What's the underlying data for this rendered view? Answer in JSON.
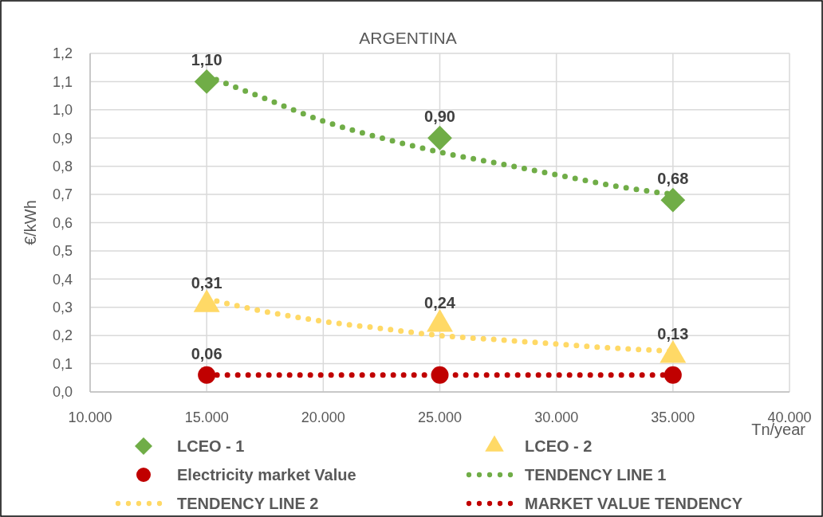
{
  "chart_data": {
    "type": "scatter",
    "title": "ARGENTINA",
    "xlabel": "Tn/year",
    "ylabel": "€/kWh",
    "xlim": [
      10000,
      40000
    ],
    "ylim": [
      0,
      1.2
    ],
    "xticks": [
      {
        "value": 10000,
        "label": "10.000"
      },
      {
        "value": 15000,
        "label": "15.000"
      },
      {
        "value": 20000,
        "label": "20.000"
      },
      {
        "value": 25000,
        "label": "25.000"
      },
      {
        "value": 30000,
        "label": "30.000"
      },
      {
        "value": 35000,
        "label": "35.000"
      },
      {
        "value": 40000,
        "label": "40.000"
      }
    ],
    "yticks": [
      {
        "value": 0,
        "label": "0,0"
      },
      {
        "value": 0.1,
        "label": "0,1"
      },
      {
        "value": 0.2,
        "label": "0,2"
      },
      {
        "value": 0.3,
        "label": "0,3"
      },
      {
        "value": 0.4,
        "label": "0,4"
      },
      {
        "value": 0.5,
        "label": "0,5"
      },
      {
        "value": 0.6,
        "label": "0,6"
      },
      {
        "value": 0.7,
        "label": "0,7"
      },
      {
        "value": 0.8,
        "label": "0,8"
      },
      {
        "value": 0.9,
        "label": "0,9"
      },
      {
        "value": 1,
        "label": "1,0"
      },
      {
        "value": 1.1,
        "label": "1,1"
      },
      {
        "value": 1.2,
        "label": "1,2"
      }
    ],
    "grid": true,
    "legend": "bottom",
    "series": [
      {
        "name": "LCEO - 1",
        "marker": "diamond",
        "color": "#70ad47",
        "x": [
          15000,
          25000,
          35000
        ],
        "values": [
          1.1,
          0.9,
          0.68
        ],
        "value_labels": [
          "1,10",
          "0,90",
          "0,68"
        ]
      },
      {
        "name": "LCEO - 2",
        "marker": "triangle",
        "color": "#ffd966",
        "x": [
          15000,
          25000,
          35000
        ],
        "values": [
          0.31,
          0.24,
          0.13
        ],
        "value_labels": [
          "0,31",
          "0,24",
          "0,13"
        ]
      },
      {
        "name": "Electricity market Value",
        "marker": "circle",
        "color": "#c00000",
        "x": [
          15000,
          25000,
          35000
        ],
        "values": [
          0.06,
          0.06,
          0.06
        ],
        "value_labels": [
          "0,06",
          null,
          null
        ]
      },
      {
        "name": "TENDENCY LINE 1",
        "type": "line",
        "marker": "none",
        "line_style": "dotted",
        "color": "#70ad47",
        "x": [
          15000,
          17500,
          20000,
          22500,
          25000,
          27500,
          30000,
          32500,
          35000
        ],
        "values": [
          1.12,
          1.04,
          0.96,
          0.9,
          0.85,
          0.81,
          0.77,
          0.73,
          0.7
        ]
      },
      {
        "name": "TENDENCY LINE 2",
        "type": "line",
        "marker": "none",
        "line_style": "dotted",
        "color": "#ffd966",
        "x": [
          15000,
          17500,
          20000,
          22500,
          25000,
          27500,
          30000,
          32500,
          35000
        ],
        "values": [
          0.33,
          0.285,
          0.25,
          0.225,
          0.2,
          0.185,
          0.17,
          0.155,
          0.145
        ]
      },
      {
        "name": "MARKET VALUE TENDENCY",
        "type": "line",
        "marker": "none",
        "line_style": "dotted",
        "color": "#c00000",
        "x": [
          15000,
          35000
        ],
        "values": [
          0.06,
          0.06
        ]
      }
    ]
  }
}
